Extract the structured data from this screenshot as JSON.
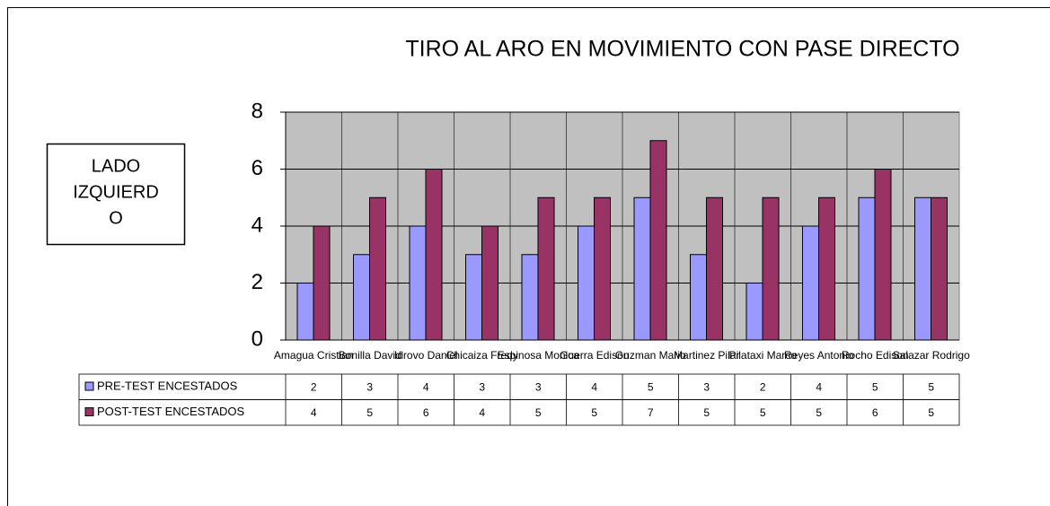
{
  "chart_data": {
    "type": "bar",
    "title": "TIRO AL ARO EN MOVIMIENTO CON PASE DIRECTO",
    "annotation_lines": [
      "LADO",
      "IZQUIERD",
      "O"
    ],
    "categories": [
      "Amagua Cristian",
      "Bonilla David",
      "Idrovo Daniel",
      "Chicaiza Fredy",
      "Espinosa Monica",
      "Guerra Edison",
      "Guzman Mario",
      "Martinez Pilar",
      "Pilataxi Marco",
      "Reyes Antonio",
      "Rocho Edison",
      "Salazar Rodrigo"
    ],
    "series": [
      {
        "name": "PRE-TEST ENCESTADOS",
        "color": "#9999ff",
        "values": [
          2,
          3,
          4,
          3,
          3,
          4,
          5,
          3,
          2,
          4,
          5,
          5
        ]
      },
      {
        "name": "POST-TEST ENCESTADOS",
        "color": "#993366",
        "values": [
          4,
          5,
          6,
          4,
          5,
          5,
          7,
          5,
          5,
          5,
          6,
          5
        ]
      }
    ],
    "ylim": [
      0,
      8
    ],
    "yticks": [
      0,
      2,
      4,
      6,
      8
    ],
    "grid": true,
    "data_table": true
  }
}
